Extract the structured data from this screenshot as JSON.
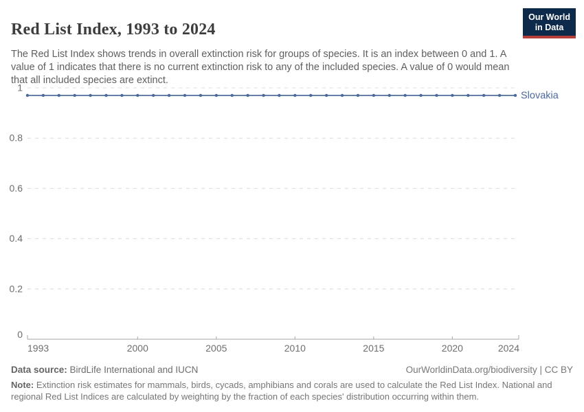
{
  "header": {
    "title": "Red List Index, 1993 to 2024",
    "subtitle": "The Red List Index shows trends in overall extinction risk for groups of species. It is an index between 0 and 1. A value of 1 indicates that there is no current extinction risk to any of the included species. A value of 0 would mean that all included species are extinct.",
    "logo": {
      "line1": "Our World",
      "line2": "in Data",
      "bg_color": "#0d2a4a",
      "accent_color": "#b5403a",
      "text_color": "#ffffff"
    }
  },
  "chart_data": {
    "type": "line",
    "title": "Red List Index, 1993 to 2024",
    "xlabel": "",
    "ylabel": "",
    "xlim": [
      1993,
      2024
    ],
    "ylim": [
      0,
      1
    ],
    "x_ticks": [
      1993,
      2000,
      2005,
      2010,
      2015,
      2020,
      2024
    ],
    "y_ticks": [
      0,
      0.2,
      0.4,
      0.6,
      0.8,
      1
    ],
    "grid": "horizontal-dashed",
    "legend_position": "end-of-line-label",
    "x": [
      1993,
      1994,
      1995,
      1996,
      1997,
      1998,
      1999,
      2000,
      2001,
      2002,
      2003,
      2004,
      2005,
      2006,
      2007,
      2008,
      2009,
      2010,
      2011,
      2012,
      2013,
      2014,
      2015,
      2016,
      2017,
      2018,
      2019,
      2020,
      2021,
      2022,
      2023,
      2024
    ],
    "series": [
      {
        "name": "Slovakia",
        "color": "#4c6a9c",
        "values": [
          0.97,
          0.97,
          0.97,
          0.97,
          0.97,
          0.97,
          0.97,
          0.97,
          0.97,
          0.97,
          0.97,
          0.97,
          0.97,
          0.97,
          0.97,
          0.97,
          0.97,
          0.97,
          0.97,
          0.97,
          0.97,
          0.97,
          0.97,
          0.97,
          0.97,
          0.97,
          0.97,
          0.97,
          0.97,
          0.97,
          0.97,
          0.97
        ]
      }
    ]
  },
  "footer": {
    "data_source_label": "Data source:",
    "data_source": "BirdLife International and IUCN",
    "attribution": "OurWorldinData.org/biodiversity | CC BY",
    "note_label": "Note:",
    "note": "Extinction risk estimates for mammals, birds, cycads, amphibians and corals are used to calculate the Red List Index. National and regional Red List Indices are calculated by weighting by the fraction of each species' distribution occurring within them."
  }
}
